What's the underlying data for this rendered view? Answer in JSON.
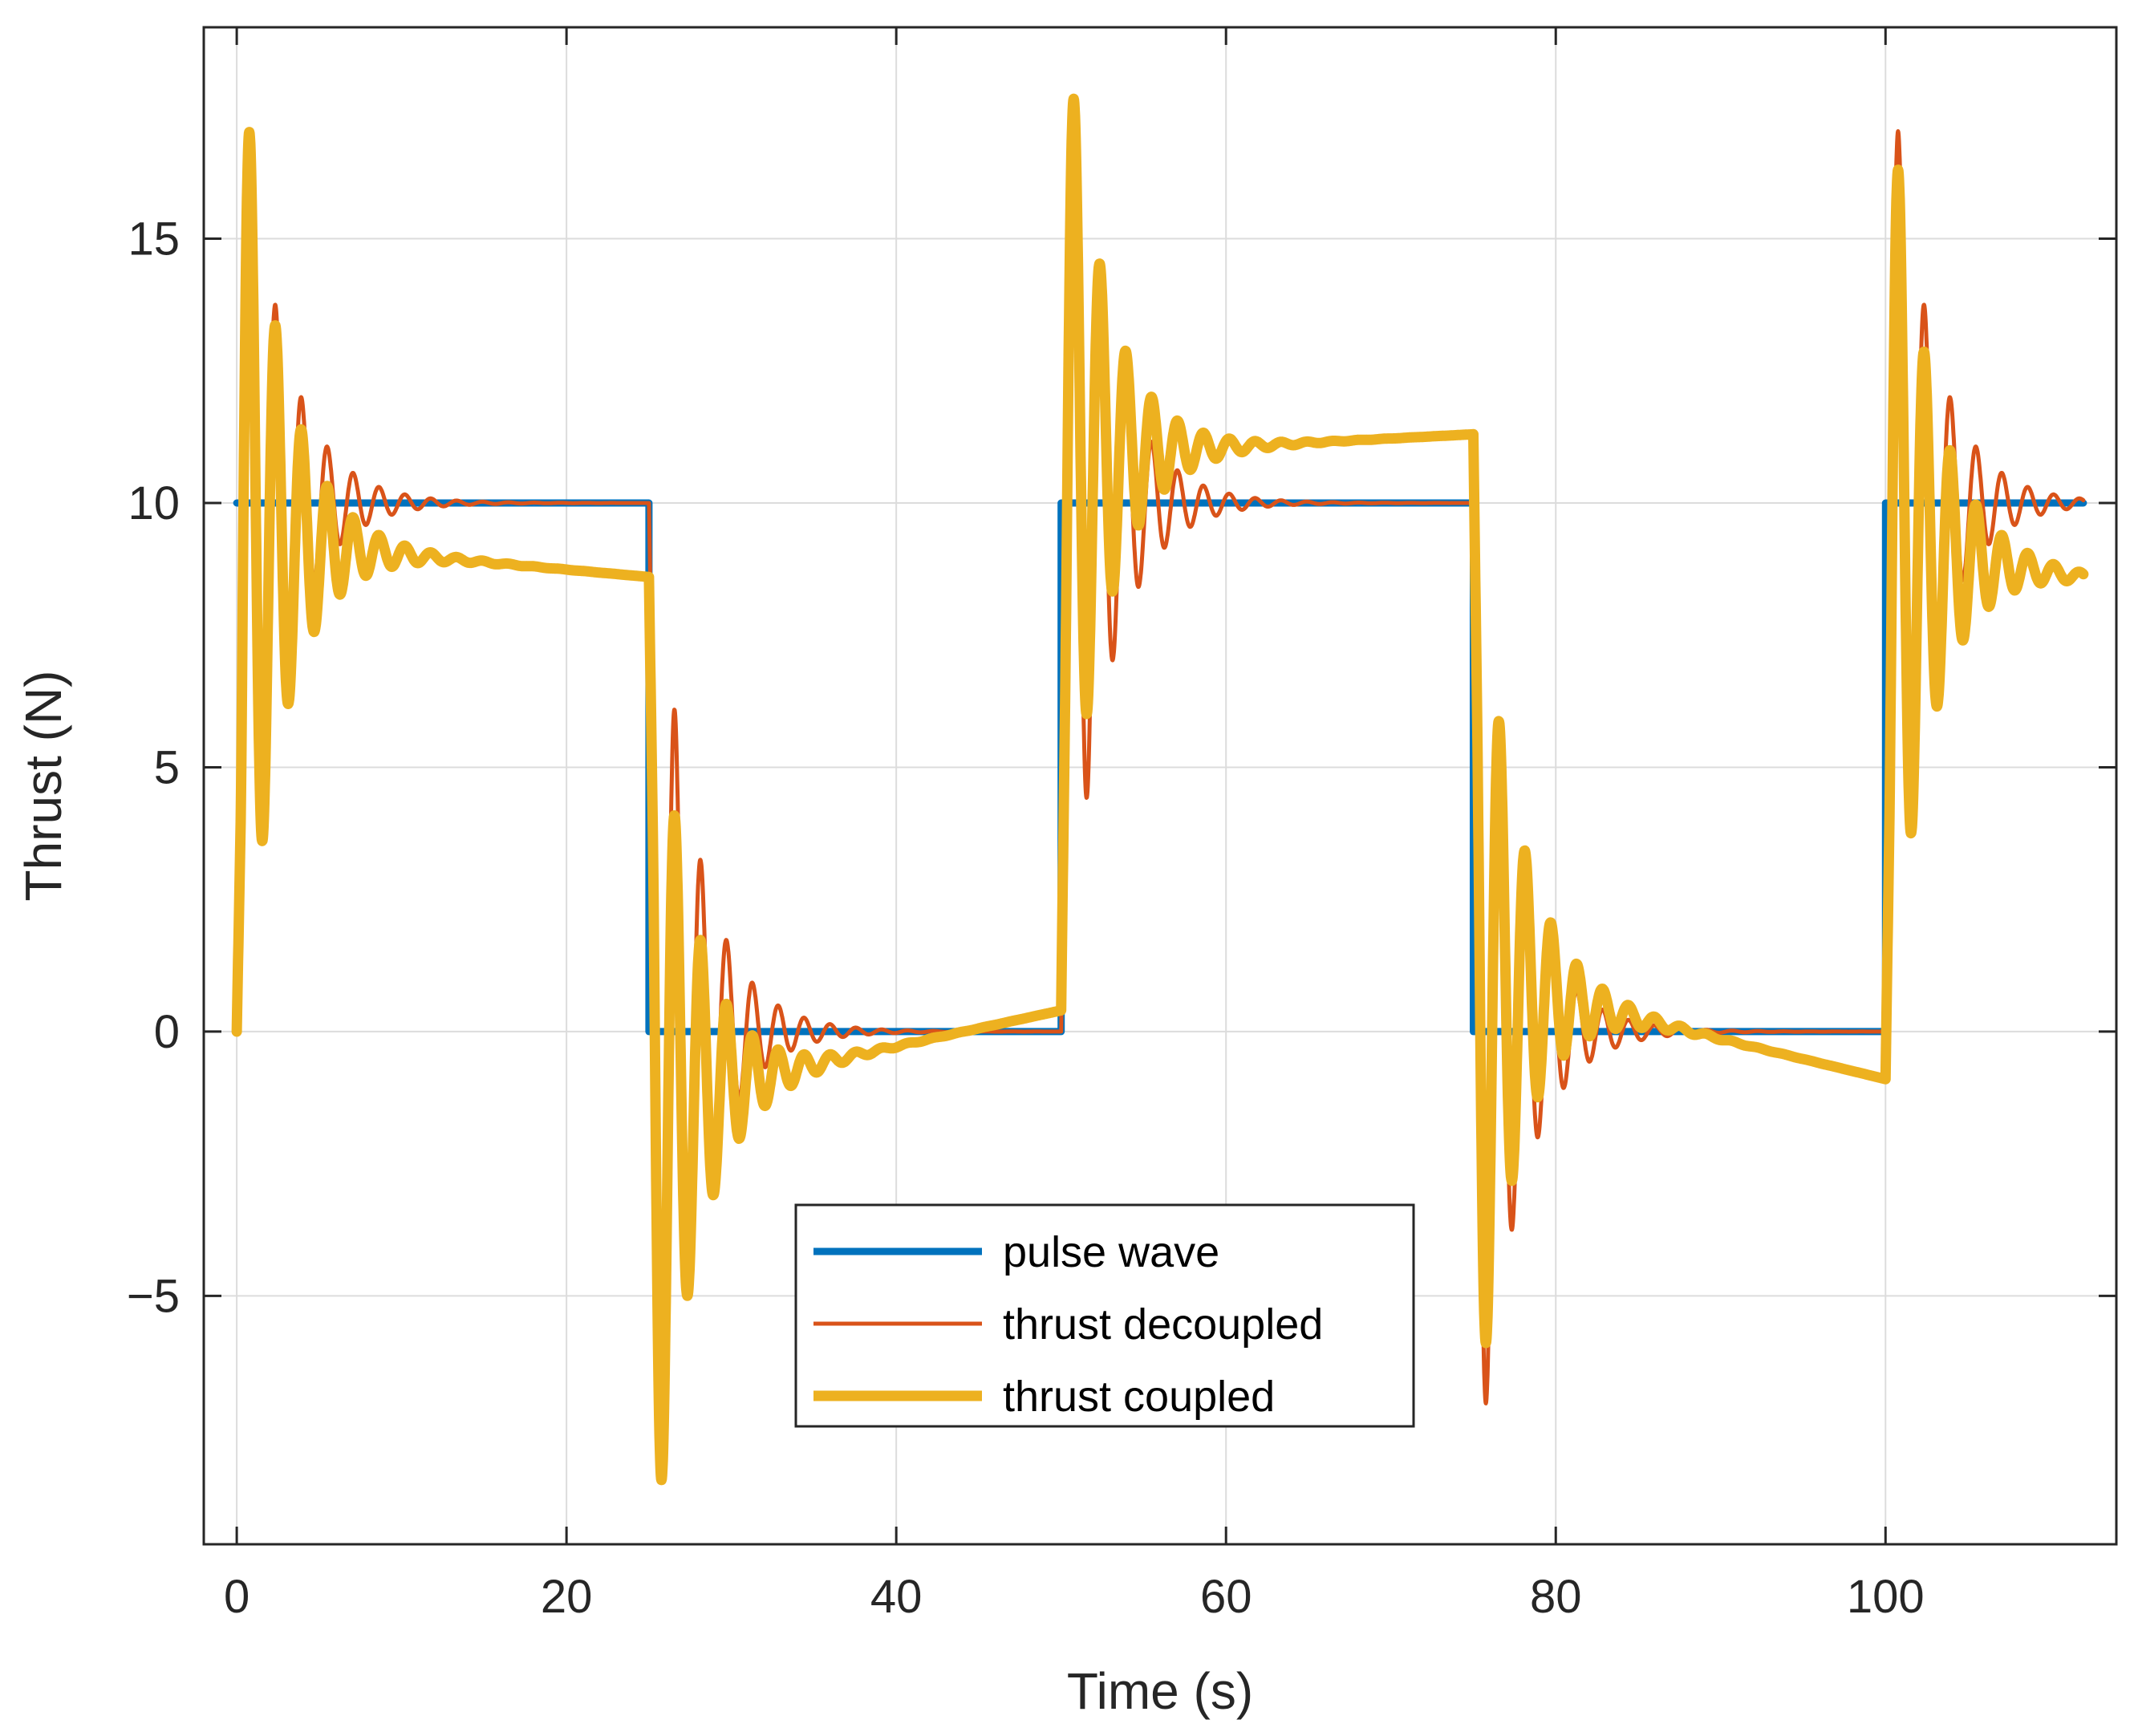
{
  "chart_data": {
    "type": "line",
    "title": "",
    "xlabel": "Time (s)",
    "ylabel": "Thrust (N)",
    "xlim": [
      -2,
      114
    ],
    "ylim": [
      -9.7,
      19.0
    ],
    "xticks": [
      0,
      20,
      40,
      60,
      80,
      100
    ],
    "xtick_labels": [
      "0",
      "20",
      "40",
      "60",
      "80",
      "100"
    ],
    "yticks": [
      -5,
      0,
      5,
      10,
      15
    ],
    "ytick_labels": [
      "−5",
      "0",
      "5",
      "10",
      "15"
    ],
    "grid": true,
    "legend_position": "bottom-center",
    "series": [
      {
        "name": "pulse wave",
        "color": "#0072BD",
        "kind": "square",
        "period": 50,
        "duty_end": 25,
        "high": 10,
        "low": 0,
        "t_end": 112,
        "points": [
          [
            0,
            10
          ],
          [
            25,
            10
          ],
          [
            25,
            0
          ],
          [
            50,
            0
          ],
          [
            50,
            10
          ],
          [
            75,
            10
          ],
          [
            75,
            0
          ],
          [
            100,
            0
          ],
          [
            100,
            10
          ],
          [
            112,
            10
          ]
        ]
      },
      {
        "name": "thrust decoupled",
        "color": "#D95319",
        "kind": "damped_step",
        "segments": [
          {
            "t0": 0,
            "t1": 25,
            "start": 0,
            "target": 10,
            "omega": 4.0,
            "zeta": 0.1,
            "first_peak": 17.0
          },
          {
            "t0": 25,
            "t1": 50,
            "start": 10,
            "target": 0,
            "omega": 4.0,
            "zeta": 0.1,
            "first_peak": -8.3
          },
          {
            "t0": 50,
            "t1": 75,
            "start": 0,
            "target": 10,
            "omega": 4.0,
            "zeta": 0.1,
            "first_peak": 17.6
          },
          {
            "t0": 75,
            "t1": 100,
            "start": 10,
            "target": 0,
            "omega": 4.0,
            "zeta": 0.1,
            "first_peak": -7.0
          },
          {
            "t0": 100,
            "t1": 112,
            "start": 0,
            "target": 10,
            "omega": 4.0,
            "zeta": 0.1,
            "first_peak": 17.0
          }
        ]
      },
      {
        "name": "thrust coupled",
        "color": "#EDB120",
        "kind": "damped_step_drift",
        "segments": [
          {
            "t0": 0,
            "t1": 25,
            "start": 0,
            "settle_from": 9.3,
            "settle_to": 8.6,
            "omega": 4.0,
            "zeta": 0.1,
            "first_peak": 17.0
          },
          {
            "t0": 25,
            "t1": 50,
            "start": 8.6,
            "settle_from": -1.3,
            "settle_to": 0.4,
            "omega": 4.0,
            "zeta": 0.1,
            "first_peak": -8.5
          },
          {
            "t0": 50,
            "t1": 75,
            "start": 0.4,
            "settle_from": 10.9,
            "settle_to": 11.3,
            "omega": 4.0,
            "zeta": 0.1,
            "first_peak": 17.6
          },
          {
            "t0": 75,
            "t1": 100,
            "start": 11.3,
            "settle_from": 1.0,
            "settle_to": -0.9,
            "omega": 4.0,
            "zeta": 0.1,
            "first_peak": -5.8
          },
          {
            "t0": 100,
            "t1": 112,
            "start": -0.9,
            "settle_from": 9.1,
            "settle_to": 8.6,
            "omega": 4.0,
            "zeta": 0.1,
            "first_peak": 16.3
          }
        ]
      }
    ]
  }
}
